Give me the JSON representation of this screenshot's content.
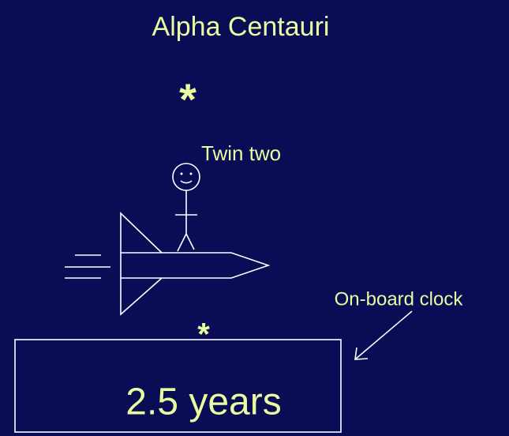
{
  "title": "Alpha Centauri",
  "star_far": "*",
  "traveler_label": "Twin two",
  "star_near": "*",
  "clock_label": "On-board clock",
  "clock_reading": "2.5 years"
}
